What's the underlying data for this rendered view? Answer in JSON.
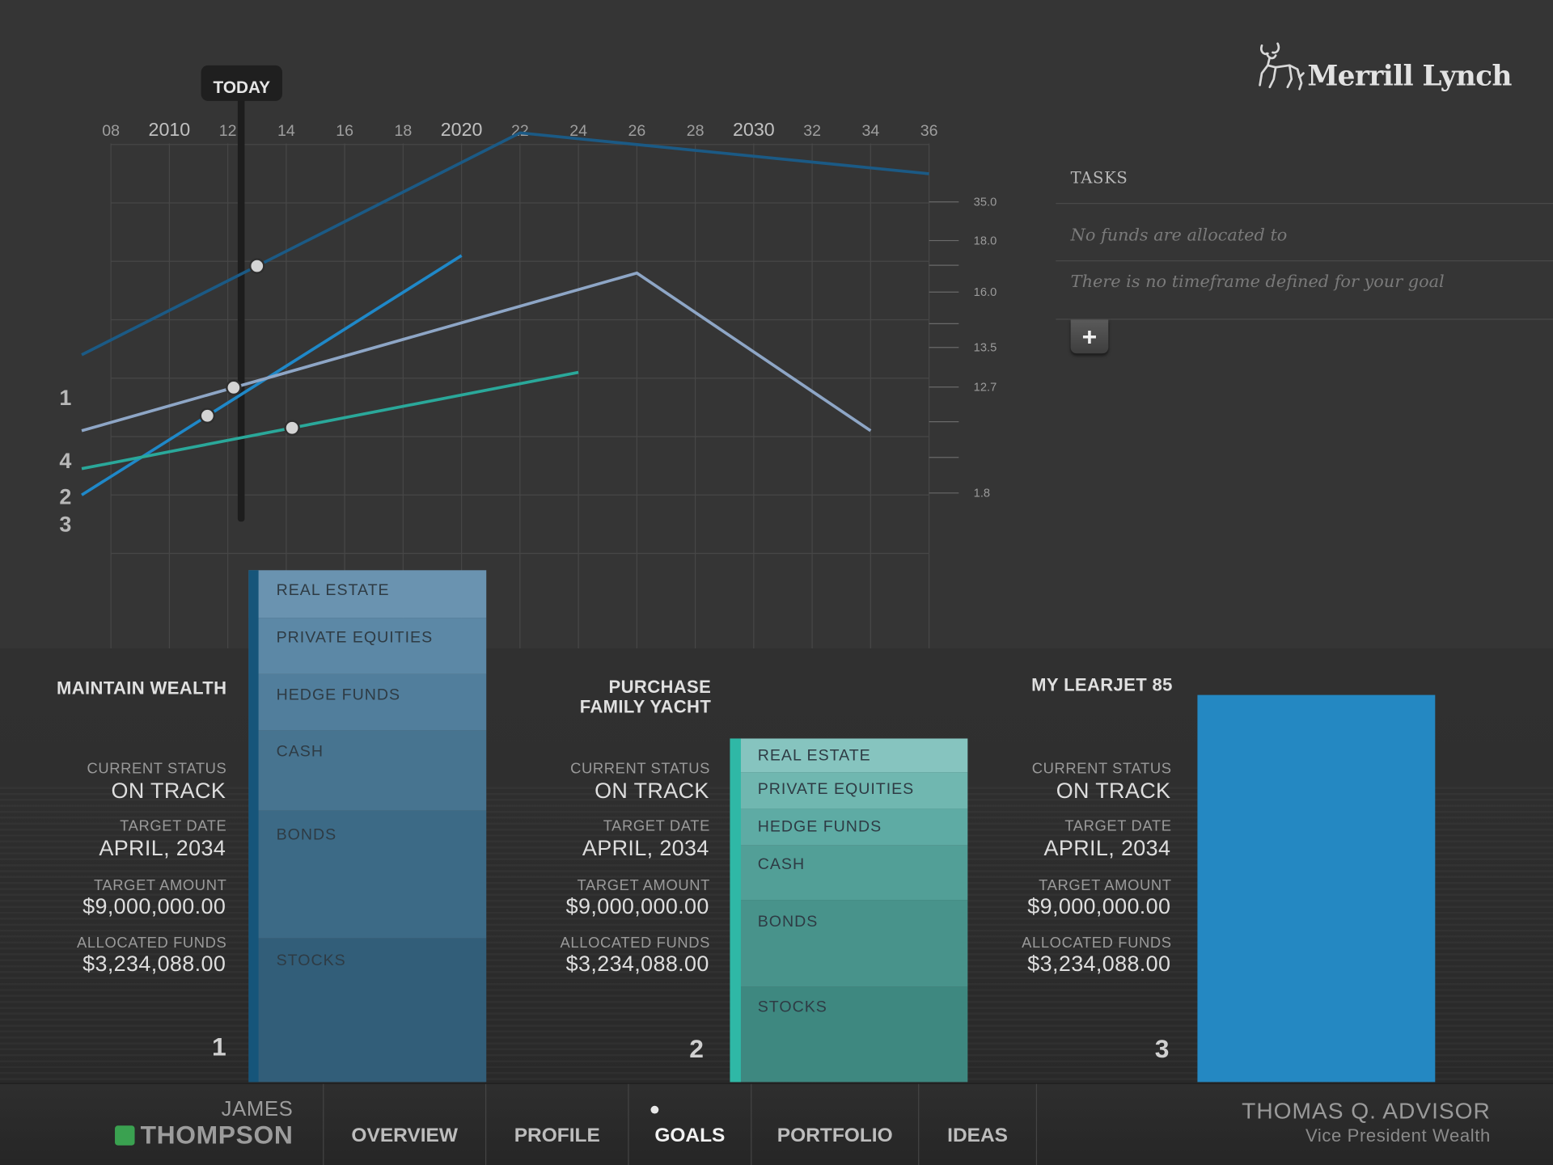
{
  "brand": {
    "name": "Merrill Lynch"
  },
  "timeline": {
    "today_label": "TODAY",
    "x_ticks": [
      "08",
      "2010",
      "12",
      "14",
      "16",
      "18",
      "2020",
      "22",
      "24",
      "26",
      "28",
      "2030",
      "32",
      "34",
      "36"
    ],
    "y_ticks": [
      "35.0",
      "18.0",
      "16.0",
      "13.5",
      "12.7",
      "1.8"
    ],
    "line_labels": [
      "1",
      "4",
      "2",
      "3"
    ]
  },
  "chart_data": {
    "type": "line",
    "x_axis": "year",
    "x_range": [
      2008,
      2036
    ],
    "series": [
      {
        "line_label": "1",
        "color": "#1b5a85",
        "points": [
          [
            2007,
            2.4
          ],
          [
            2022,
            6.2
          ],
          [
            2036,
            5.5
          ]
        ],
        "marker_at": 2013
      },
      {
        "line_label": "3",
        "color": "#1f88c8",
        "points": [
          [
            2007,
            0.0
          ],
          [
            2020,
            4.1
          ]
        ],
        "marker_at": 2011.3
      },
      {
        "line_label": "4",
        "color": "#8ea6c6",
        "points": [
          [
            2007,
            1.1
          ],
          [
            2026,
            3.8
          ],
          [
            2034,
            1.1
          ]
        ],
        "marker_at": 2012.2
      },
      {
        "line_label": "2",
        "color": "#2aa89a",
        "points": [
          [
            2007,
            0.45
          ],
          [
            2024,
            2.1
          ]
        ],
        "marker_at": 2014.2
      }
    ]
  },
  "tasks": {
    "header": "TASKS",
    "items": [
      "No funds are allocated to",
      "There is no timeframe defined for your goal"
    ],
    "add_label": "+"
  },
  "goals": [
    {
      "number": "1",
      "title_lines": [
        "MAINTAIN WEALTH"
      ],
      "status_label": "CURRENT STATUS",
      "status": "ON TRACK",
      "date_label": "TARGET DATE",
      "date": "APRIL, 2034",
      "amount_label": "TARGET AMOUNT",
      "amount": "$9,000,000.00",
      "funds_label": "ALLOCATED FUNDS",
      "funds": "$3,234,088.00",
      "allocations": [
        "REAL ESTATE",
        "PRIVATE EQUITIES",
        "HEDGE FUNDS",
        "CASH",
        "BONDS",
        "STOCKS"
      ]
    },
    {
      "number": "2",
      "title_lines": [
        "PURCHASE",
        "FAMILY YACHT"
      ],
      "status_label": "CURRENT STATUS",
      "status": "ON TRACK",
      "date_label": "TARGET DATE",
      "date": "APRIL, 2034",
      "amount_label": "TARGET AMOUNT",
      "amount": "$9,000,000.00",
      "funds_label": "ALLOCATED FUNDS",
      "funds": "$3,234,088.00",
      "allocations": [
        "REAL ESTATE",
        "PRIVATE EQUITIES",
        "HEDGE FUNDS",
        "CASH",
        "BONDS",
        "STOCKS"
      ]
    },
    {
      "number": "3",
      "title_lines": [
        "MY LEARJET 85"
      ],
      "status_label": "CURRENT STATUS",
      "status": "ON TRACK",
      "date_label": "TARGET DATE",
      "date": "APRIL, 2034",
      "amount_label": "TARGET AMOUNT",
      "amount": "$9,000,000.00",
      "funds_label": "ALLOCATED FUNDS",
      "funds": "$3,234,088.00",
      "bar_color": "#2488c2"
    }
  ],
  "user": {
    "first_name": "JAMES",
    "last_name": "THOMPSON",
    "status_color": "#3aa150"
  },
  "nav": {
    "items": [
      "OVERVIEW",
      "PROFILE",
      "GOALS",
      "PORTFOLIO",
      "IDEAS"
    ],
    "active": "GOALS"
  },
  "advisor": {
    "name": "THOMAS Q. ADVISOR",
    "title": "Vice President Wealth"
  }
}
